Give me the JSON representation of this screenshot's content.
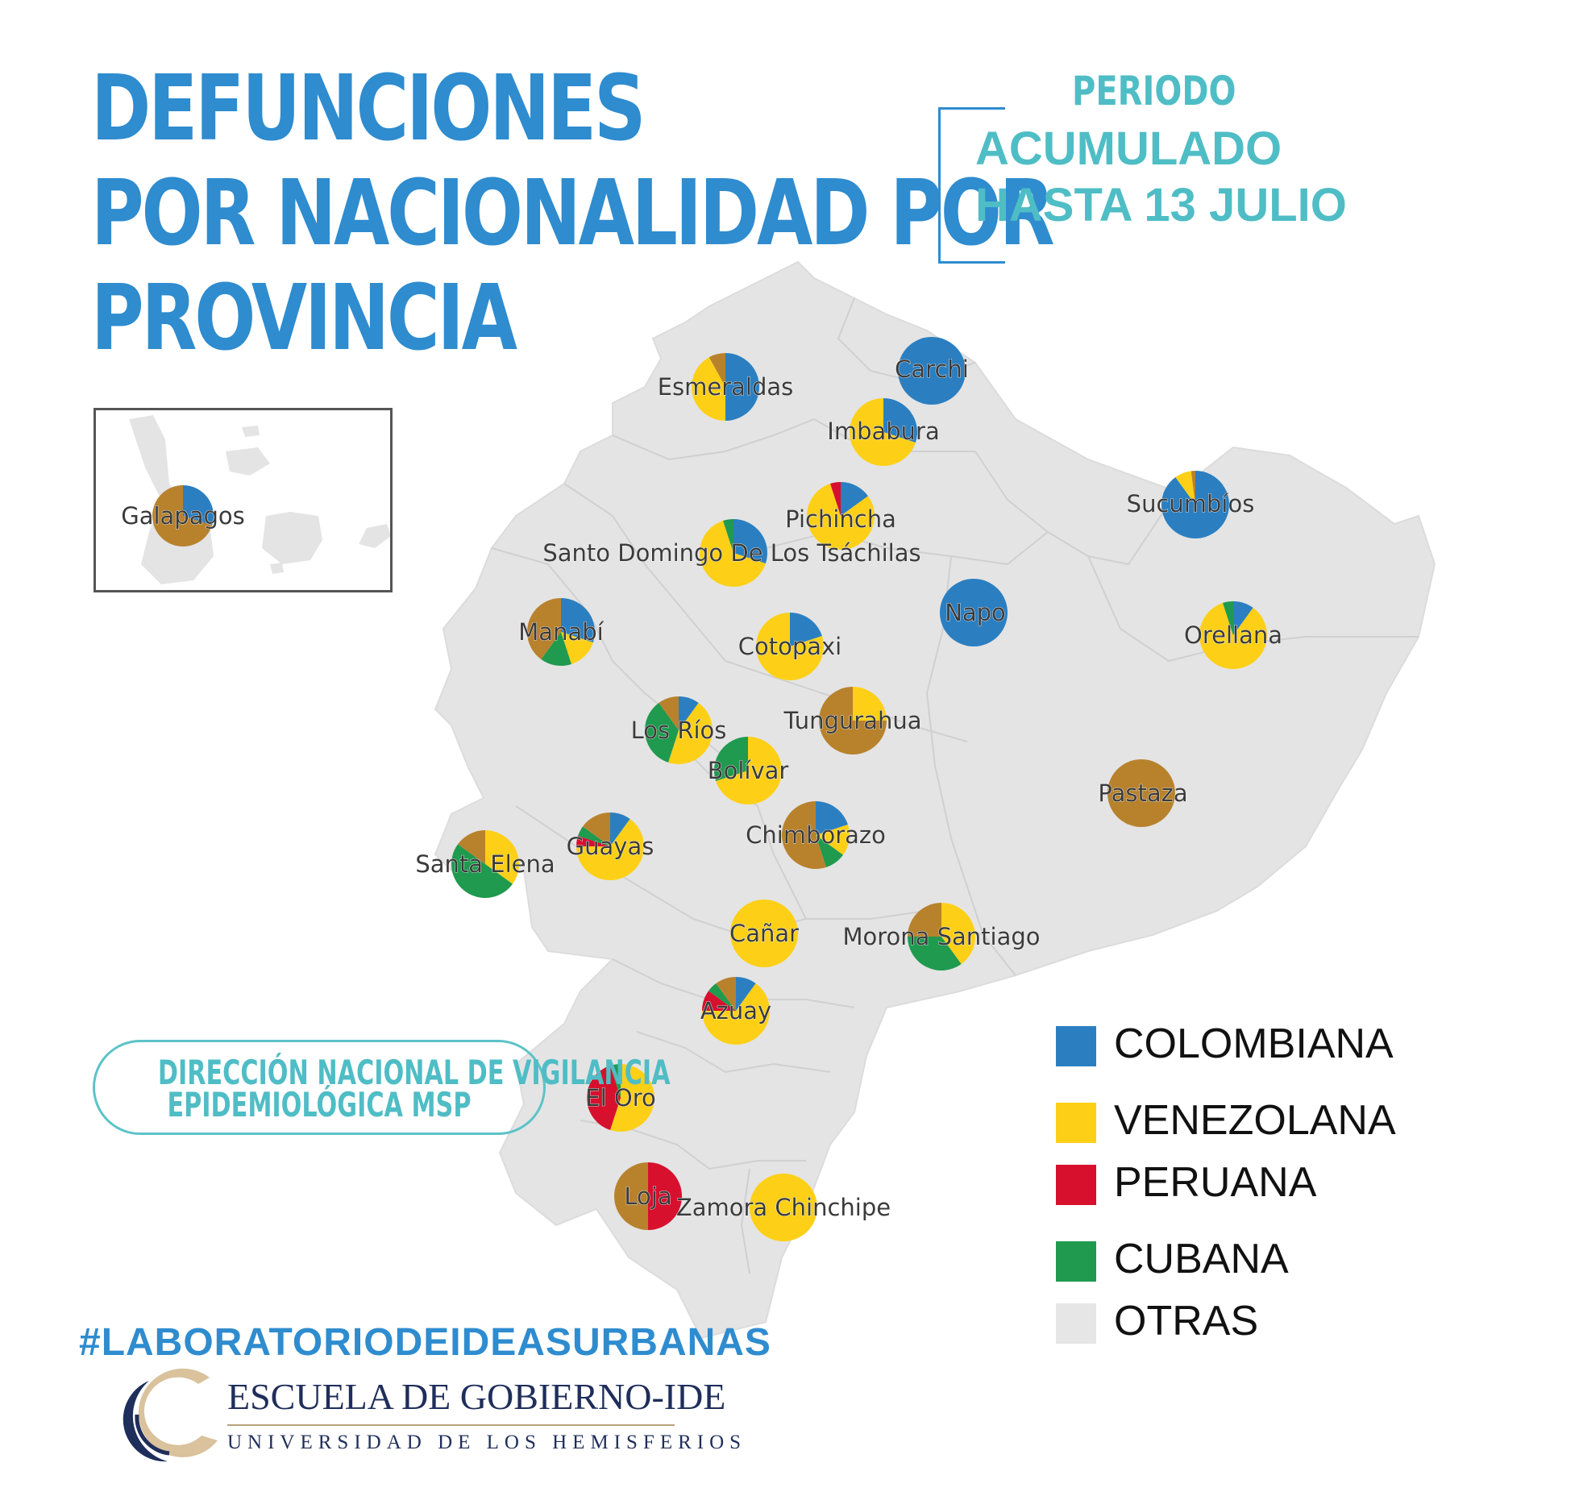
{
  "title_lines": [
    "DEFUNCIONES",
    "POR NACIONALIDAD POR",
    "PROVINCIA"
  ],
  "period": {
    "label": "PERIODO",
    "value_lines": [
      "ACUMULADO",
      "HASTA 13 JULIO"
    ]
  },
  "colors": {
    "COLOMBIANA": "#2b7fc1",
    "VENEZOLANA": "#fdd017",
    "PERUANA": "#d7102e",
    "CUBANA": "#1f9a4f",
    "OTRAS": "#e6e6e6",
    "OTHER_PIE": "#b8822d",
    "map_fill": "#e4e4e4",
    "map_border": "#d2d2d2"
  },
  "legend": [
    {
      "label": "COLOMBIANA",
      "color": "#2b7fc1"
    },
    {
      "label": "VENEZOLANA",
      "color": "#fdd017"
    },
    {
      "label": "PERUANA",
      "color": "#d7102e"
    },
    {
      "label": "CUBANA",
      "color": "#1f9a4f"
    },
    {
      "label": "OTRAS",
      "color": "#e6e6e6"
    }
  ],
  "source": {
    "lines": [
      "DIRECCIÓN NACIONAL DE VIGILANCIA",
      "EPIDEMIOLÓGICA MSP"
    ]
  },
  "hashtag": "#LABORATORIODEIDEASURBANAS",
  "logo": {
    "name": "ESCUELA DE GOBIERNO-IDE",
    "sub": "UNIVERSIDAD DE LOS HEMISFERIOS"
  },
  "chart_data": {
    "type": "pie",
    "categories": [
      "Colombiana",
      "Venezolana",
      "Peruana",
      "Cubana",
      "Otras"
    ],
    "provinces": [
      {
        "name": "Esmeraldas",
        "shares": [
          0.5,
          0.42,
          0,
          0,
          0.08
        ]
      },
      {
        "name": "Carchi",
        "shares": [
          1.0,
          0,
          0,
          0,
          0
        ]
      },
      {
        "name": "Imbabura",
        "shares": [
          0.3,
          0.7,
          0,
          0,
          0
        ]
      },
      {
        "name": "Sucumbíos",
        "shares": [
          0.9,
          0.08,
          0,
          0,
          0.02
        ]
      },
      {
        "name": "Pichincha",
        "shares": [
          0.15,
          0.8,
          0.05,
          0,
          0
        ]
      },
      {
        "name": "Santo Domingo De Los Tsáchilas",
        "shares": [
          0.3,
          0.65,
          0,
          0.05,
          0
        ]
      },
      {
        "name": "Napo",
        "shares": [
          1.0,
          0,
          0,
          0,
          0
        ]
      },
      {
        "name": "Orellana",
        "shares": [
          0.1,
          0.85,
          0,
          0.05,
          0
        ]
      },
      {
        "name": "Manabí",
        "shares": [
          0.3,
          0.15,
          0,
          0.15,
          0.4
        ]
      },
      {
        "name": "Cotopaxi",
        "shares": [
          0.2,
          0.8,
          0,
          0,
          0
        ]
      },
      {
        "name": "Los Ríos",
        "shares": [
          0.1,
          0.45,
          0,
          0.35,
          0.1
        ]
      },
      {
        "name": "Tungurahua",
        "shares": [
          0,
          0.25,
          0,
          0,
          0.75
        ]
      },
      {
        "name": "Bolívar",
        "shares": [
          0,
          0.7,
          0,
          0.3,
          0
        ]
      },
      {
        "name": "Pastaza",
        "shares": [
          0,
          0,
          0,
          0,
          1.0
        ]
      },
      {
        "name": "Chimborazo",
        "shares": [
          0.2,
          0.15,
          0,
          0.1,
          0.55
        ]
      },
      {
        "name": "Guayas",
        "shares": [
          0.1,
          0.65,
          0.05,
          0.05,
          0.15
        ]
      },
      {
        "name": "Santa Elena",
        "shares": [
          0,
          0.35,
          0,
          0.5,
          0.15
        ]
      },
      {
        "name": "Cañar",
        "shares": [
          0,
          1.0,
          0,
          0,
          0
        ]
      },
      {
        "name": "Morona Santiago",
        "shares": [
          0,
          0.4,
          0,
          0.35,
          0.25
        ]
      },
      {
        "name": "Azuay",
        "shares": [
          0.1,
          0.65,
          0.1,
          0.05,
          0.1
        ]
      },
      {
        "name": "El Oro",
        "shares": [
          0,
          0.55,
          0.4,
          0.05,
          0
        ]
      },
      {
        "name": "Loja",
        "shares": [
          0,
          0,
          0.5,
          0,
          0.5
        ]
      },
      {
        "name": "Zamora Chinchipe",
        "shares": [
          0,
          1.0,
          0,
          0,
          0
        ]
      },
      {
        "name": "Galapagos",
        "shares": [
          0.3,
          0,
          0,
          0,
          0.7
        ]
      }
    ]
  }
}
